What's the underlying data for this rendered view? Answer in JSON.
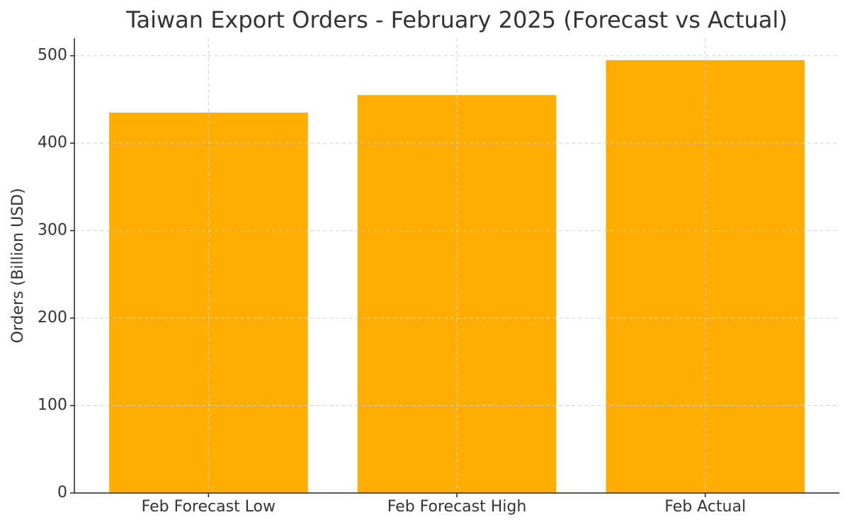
{
  "chart_data": {
    "type": "bar",
    "title": "Taiwan Export Orders - February 2025 (Forecast vs Actual)",
    "y_label": "Orders (Billion USD)",
    "categories": [
      "Feb Forecast Low",
      "Feb Forecast High",
      "Feb Actual"
    ],
    "values": [
      435,
      455,
      495
    ],
    "color": "#ffae00",
    "ylim": [
      0,
      520
    ],
    "yticks": [
      0,
      100,
      200,
      300,
      400,
      500
    ],
    "grid": true
  }
}
